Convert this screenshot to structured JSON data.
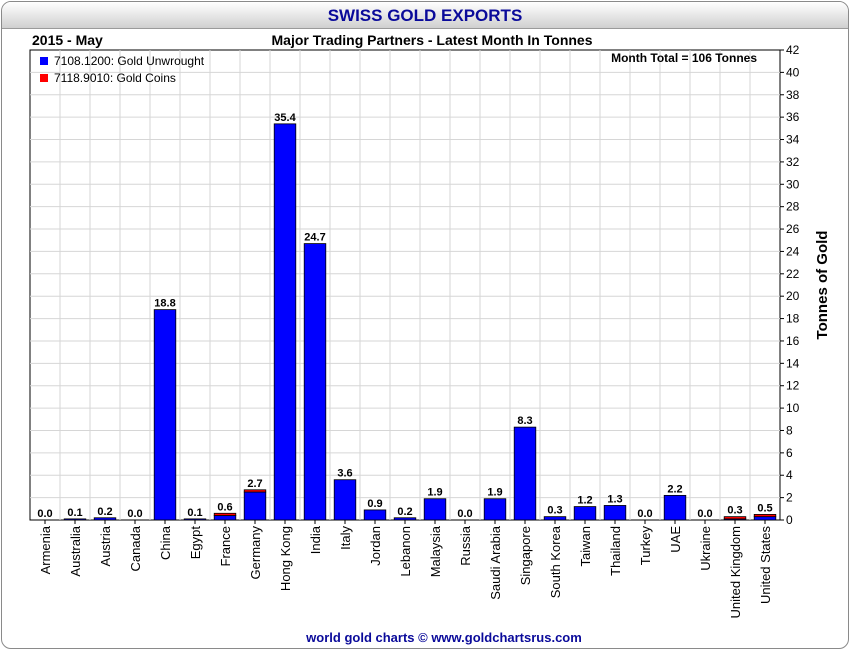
{
  "title": "SWISS GOLD EXPORTS",
  "period": "2015 - May",
  "subtitle": "Major Trading Partners - Latest Month In Tonnes",
  "month_total": "Month Total = 106 Tonnes",
  "footer": "world gold charts © www.goldchartsrus.com",
  "colors": {
    "unwrought": "#0000ff",
    "coins": "#ff0000",
    "title": "#0a0a9a"
  },
  "chart_data": {
    "type": "bar",
    "stacked": true,
    "ylabel": "Tonnes of Gold",
    "ylim": [
      0,
      42
    ],
    "yticks": [
      0,
      2,
      4,
      6,
      8,
      10,
      12,
      14,
      16,
      18,
      20,
      22,
      24,
      26,
      28,
      30,
      32,
      34,
      36,
      38,
      40,
      42
    ],
    "y_axis_position": "right",
    "grid": true,
    "legend_position": "top-left",
    "categories": [
      "Armenia",
      "Australia",
      "Austria",
      "Canada",
      "China",
      "Egypt",
      "France",
      "Germany",
      "Hong Kong",
      "India",
      "Italy",
      "Jordan",
      "Lebanon",
      "Malaysia",
      "Russia",
      "Saudi Arabia",
      "Singapore",
      "South Korea",
      "Taiwan",
      "Thailand",
      "Turkey",
      "UAE",
      "Ukraine",
      "United Kingdom",
      "United States"
    ],
    "series": [
      {
        "name": "7108.1200: Gold Unwrought",
        "color": "#0000ff",
        "values": [
          0.0,
          0.1,
          0.2,
          0.0,
          18.8,
          0.1,
          0.4,
          2.5,
          35.4,
          24.7,
          3.6,
          0.9,
          0.2,
          1.9,
          0.0,
          1.9,
          8.3,
          0.3,
          1.2,
          1.3,
          0.0,
          2.2,
          0.0,
          0.1,
          0.3
        ]
      },
      {
        "name": "7118.9010: Gold Coins",
        "color": "#ff0000",
        "values": [
          0.0,
          0.0,
          0.0,
          0.0,
          0.0,
          0.0,
          0.2,
          0.2,
          0.0,
          0.0,
          0.0,
          0.0,
          0.0,
          0.0,
          0.0,
          0.0,
          0.0,
          0.0,
          0.0,
          0.0,
          0.0,
          0.0,
          0.0,
          0.2,
          0.2
        ]
      }
    ],
    "totals": [
      "0.0",
      "0.1",
      "0.2",
      "0.0",
      "18.8",
      "0.1",
      "0.6",
      "2.7",
      "35.4",
      "24.7",
      "3.6",
      "0.9",
      "0.2",
      "1.9",
      "0.0",
      "1.9",
      "8.3",
      "0.3",
      "1.2",
      "1.3",
      "0.0",
      "2.2",
      "0.0",
      "0.3",
      "0.5"
    ]
  }
}
